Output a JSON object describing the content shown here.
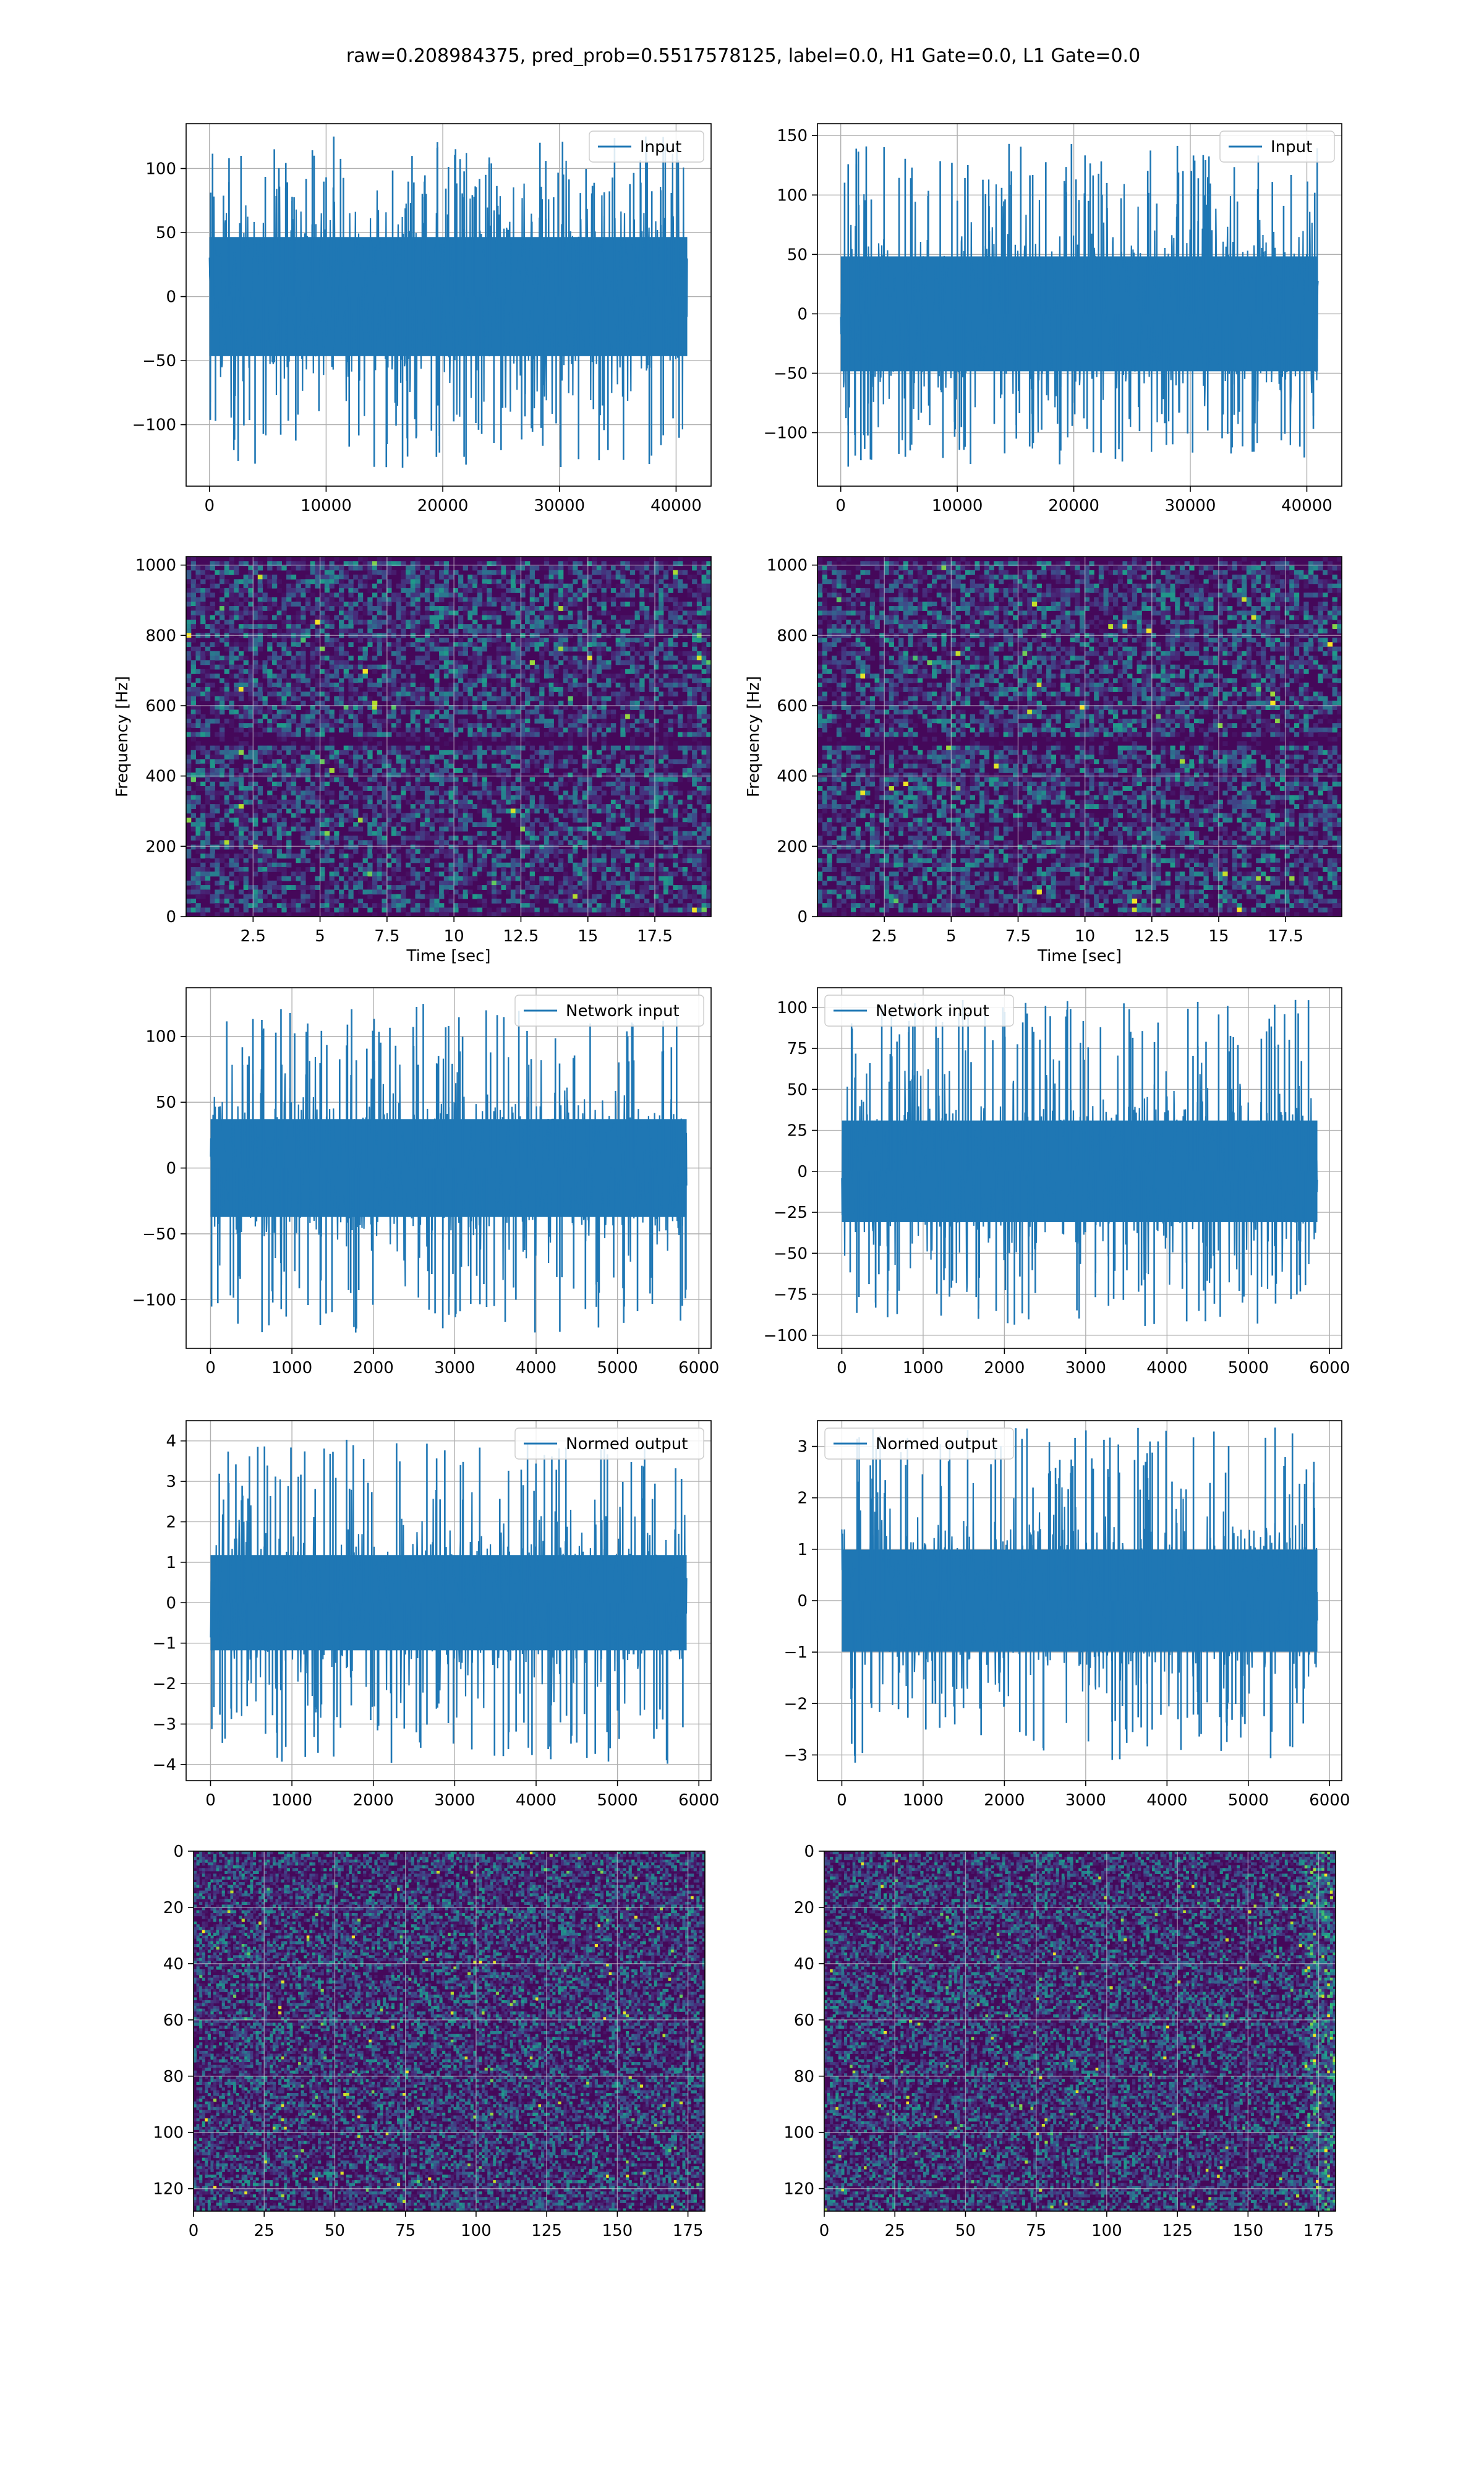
{
  "figure": {
    "title": "raw=0.208984375, pred_prob=0.5517578125, label=0.0, H1 Gate=0.0, L1 Gate=0.0",
    "colors": {
      "line": "#1f77b4",
      "grid": "#b0b0b0",
      "axes": "#000000"
    }
  },
  "chart_data": [
    {
      "id": "r1c1",
      "type": "line",
      "legend": "Input",
      "legend_loc": "upper-right",
      "xlim": [
        -2000,
        43000
      ],
      "ylim": [
        -148,
        135
      ],
      "xticks": [
        0,
        10000,
        20000,
        30000,
        40000
      ],
      "yticks": [
        -100,
        -50,
        0,
        50,
        100
      ],
      "x_range": [
        0,
        40960
      ],
      "amplitude": 75,
      "peak_max": 125,
      "peak_min": -135,
      "xlabel": "",
      "ylabel": "",
      "grid": true
    },
    {
      "id": "r1c2",
      "type": "line",
      "legend": "Input",
      "legend_loc": "upper-right",
      "xlim": [
        -2000,
        43000
      ],
      "ylim": [
        -145,
        160
      ],
      "xticks": [
        0,
        10000,
        20000,
        30000,
        40000
      ],
      "yticks": [
        -100,
        -50,
        0,
        50,
        100,
        150
      ],
      "x_range": [
        0,
        40960
      ],
      "amplitude": 78,
      "peak_max": 145,
      "peak_min": -130,
      "xlabel": "",
      "ylabel": "",
      "grid": true
    },
    {
      "id": "r2c1",
      "type": "heatmap",
      "colormap": "viridis",
      "xlim": [
        0,
        19.6
      ],
      "ylim": [
        0,
        1024
      ],
      "xticks": [
        2.5,
        5.0,
        7.5,
        10.0,
        12.5,
        15.0,
        17.5
      ],
      "yticks": [
        0,
        200,
        400,
        600,
        800,
        1000
      ],
      "xlabel": "Time [sec]",
      "ylabel": "Frequency [Hz]",
      "dark_band_y": 500,
      "grid": true
    },
    {
      "id": "r2c2",
      "type": "heatmap",
      "colormap": "viridis",
      "xlim": [
        0,
        19.6
      ],
      "ylim": [
        0,
        1024
      ],
      "xticks": [
        2.5,
        5.0,
        7.5,
        10.0,
        12.5,
        15.0,
        17.5
      ],
      "yticks": [
        0,
        200,
        400,
        600,
        800,
        1000
      ],
      "xlabel": "Time [sec]",
      "ylabel": "Frequency [Hz]",
      "dark_band_y": 500,
      "grid": true
    },
    {
      "id": "r3c1",
      "type": "line",
      "legend": "Network input",
      "legend_loc": "upper-right",
      "xlim": [
        -300,
        6150
      ],
      "ylim": [
        -137,
        137
      ],
      "xticks": [
        0,
        1000,
        2000,
        3000,
        4000,
        5000,
        6000
      ],
      "yticks": [
        -100,
        -50,
        0,
        50,
        100
      ],
      "x_range": [
        0,
        5850
      ],
      "amplitude": 60,
      "peak_max": 125,
      "peak_min": -125,
      "xlabel": "",
      "ylabel": "",
      "grid": true
    },
    {
      "id": "r3c2",
      "type": "line",
      "legend": "Network input",
      "legend_loc": "upper-left",
      "xlim": [
        -300,
        6150
      ],
      "ylim": [
        -108,
        112
      ],
      "xticks": [
        0,
        1000,
        2000,
        3000,
        4000,
        5000,
        6000
      ],
      "yticks": [
        -100,
        -75,
        -50,
        -25,
        0,
        25,
        50,
        75,
        100
      ],
      "x_range": [
        0,
        5850
      ],
      "amplitude": 50,
      "peak_max": 105,
      "peak_min": -95,
      "xlabel": "",
      "ylabel": "",
      "grid": true
    },
    {
      "id": "r4c1",
      "type": "line",
      "legend": "Normed output",
      "legend_loc": "upper-right",
      "xlim": [
        -300,
        6150
      ],
      "ylim": [
        -4.4,
        4.5
      ],
      "xticks": [
        0,
        1000,
        2000,
        3000,
        4000,
        5000,
        6000
      ],
      "yticks": [
        -4,
        -3,
        -2,
        -1,
        0,
        1,
        2,
        3,
        4
      ],
      "x_range": [
        0,
        5850
      ],
      "amplitude": 1.9,
      "peak_max": 4.05,
      "peak_min": -4.0,
      "xlabel": "",
      "ylabel": "",
      "grid": true
    },
    {
      "id": "r4c2",
      "type": "line",
      "legend": "Normed output",
      "legend_loc": "upper-left",
      "xlim": [
        -300,
        6150
      ],
      "ylim": [
        -3.5,
        3.5
      ],
      "xticks": [
        0,
        1000,
        2000,
        3000,
        4000,
        5000,
        6000
      ],
      "yticks": [
        -3,
        -2,
        -1,
        0,
        1,
        2,
        3
      ],
      "x_range": [
        0,
        5850
      ],
      "amplitude": 1.6,
      "peak_max": 3.4,
      "peak_min": -3.15,
      "xlabel": "",
      "ylabel": "",
      "grid": true
    },
    {
      "id": "r5c1",
      "type": "heatmap",
      "colormap": "viridis",
      "xlim": [
        0,
        181
      ],
      "ylim": [
        128,
        0
      ],
      "cols": 181,
      "rows": 128,
      "xticks": [
        0,
        25,
        50,
        75,
        100,
        125,
        150,
        175
      ],
      "yticks": [
        0,
        20,
        40,
        60,
        80,
        100,
        120
      ],
      "xlabel": "",
      "ylabel": "",
      "grid": true
    },
    {
      "id": "r5c2",
      "type": "heatmap",
      "colormap": "viridis",
      "xlim": [
        0,
        181
      ],
      "ylim": [
        128,
        0
      ],
      "cols": 181,
      "rows": 128,
      "xticks": [
        0,
        25,
        50,
        75,
        100,
        125,
        150,
        175
      ],
      "yticks": [
        0,
        20,
        40,
        60,
        80,
        100,
        120
      ],
      "xlabel": "",
      "ylabel": "",
      "grid": true
    }
  ]
}
